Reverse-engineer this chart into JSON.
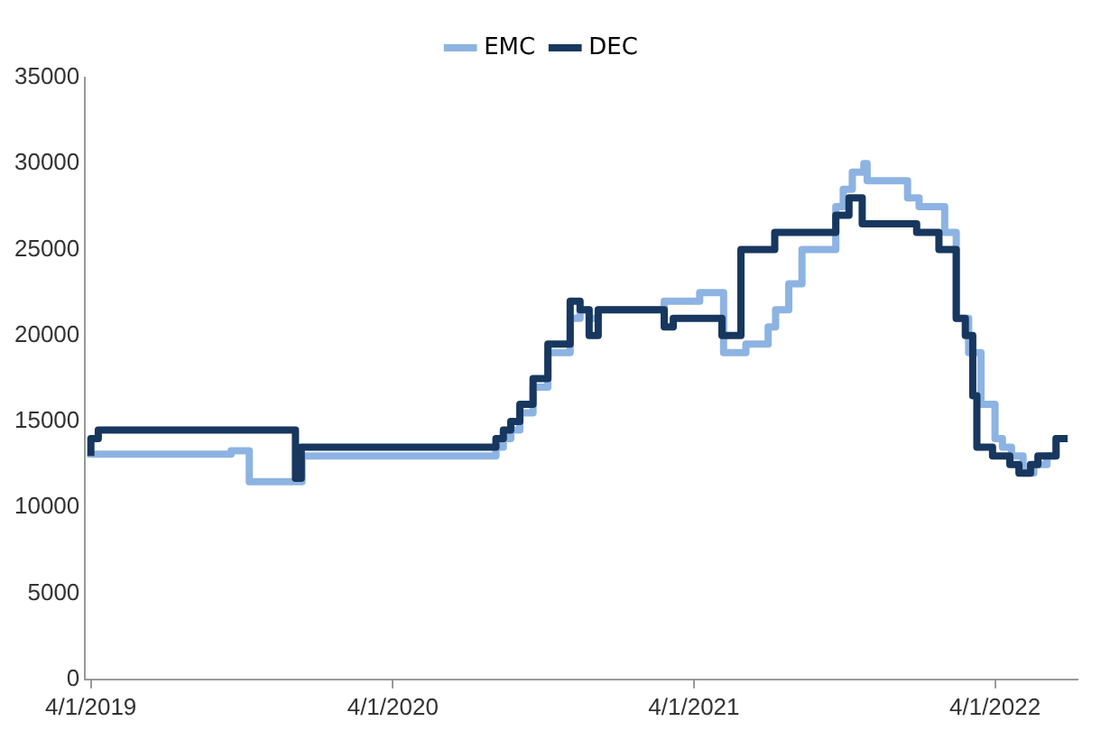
{
  "chart_data": {
    "type": "step",
    "legend": "top",
    "grid": false,
    "marker": "none",
    "xlim": [
      "2019-03-25",
      "2022-07-10"
    ],
    "xticks": [
      {
        "value": "2019-04-01",
        "label": "4/1/2019"
      },
      {
        "value": "2020-04-01",
        "label": "4/1/2020"
      },
      {
        "value": "2021-04-01",
        "label": "4/1/2021"
      },
      {
        "value": "2022-04-01",
        "label": "4/1/2022"
      }
    ],
    "ylim": [
      0,
      35000
    ],
    "yticks": [
      0,
      5000,
      10000,
      15000,
      20000,
      25000,
      30000,
      35000
    ],
    "series": [
      {
        "name": "EMC",
        "color": "#8db3e2",
        "x": [
          "2019-04-01",
          "2019-09-18",
          "2019-10-10",
          "2019-12-13",
          "2020-08-04",
          "2020-08-13",
          "2020-08-22",
          "2020-09-02",
          "2020-09-18",
          "2020-10-06",
          "2020-11-02",
          "2020-11-14",
          "2020-11-25",
          "2020-12-06",
          "2021-02-24",
          "2021-04-08",
          "2021-05-07",
          "2021-06-03",
          "2021-06-30",
          "2021-07-09",
          "2021-07-25",
          "2021-08-10",
          "2021-09-20",
          "2021-09-29",
          "2021-10-10",
          "2021-10-24",
          "2021-10-28",
          "2021-12-16",
          "2021-12-30",
          "2022-01-30",
          "2022-02-13",
          "2022-02-28",
          "2022-03-15",
          "2022-04-01",
          "2022-04-10",
          "2022-04-21",
          "2022-05-05",
          "2022-05-18",
          "2022-06-03",
          "2022-06-14",
          "2022-06-28"
        ],
        "values": [
          12900,
          13100,
          13300,
          11500,
          13000,
          13500,
          14000,
          14500,
          15500,
          17000,
          19000,
          21000,
          21500,
          21000,
          21500,
          22000,
          22500,
          19000,
          19500,
          20500,
          21500,
          23000,
          25000,
          27500,
          28500,
          29500,
          30000,
          29000,
          28000,
          27500,
          26000,
          21000,
          19000,
          16000,
          14000,
          13500,
          13000,
          12000,
          12500,
          13000,
          14000
        ]
      },
      {
        "name": "DEC",
        "color": "#17375e",
        "x": [
          "2019-04-01",
          "2019-04-10",
          "2019-12-05",
          "2019-12-12",
          "2020-08-04",
          "2020-08-13",
          "2020-08-22",
          "2020-09-02",
          "2020-09-18",
          "2020-10-06",
          "2020-11-02",
          "2020-11-14",
          "2020-11-25",
          "2020-12-06",
          "2021-02-24",
          "2021-03-07",
          "2021-05-05",
          "2021-05-28",
          "2021-07-08",
          "2021-09-20",
          "2021-10-06",
          "2021-10-22",
          "2021-12-27",
          "2022-01-23",
          "2022-02-13",
          "2022-02-24",
          "2022-03-05",
          "2022-03-10",
          "2022-03-29",
          "2022-04-19",
          "2022-04-30",
          "2022-05-14",
          "2022-05-23",
          "2022-06-14",
          "2022-06-28"
        ],
        "values": [
          13000,
          14000,
          14500,
          11700,
          13500,
          14000,
          14500,
          15000,
          16000,
          17500,
          19500,
          22000,
          21500,
          20000,
          21500,
          20500,
          21000,
          20000,
          25000,
          26000,
          27000,
          28000,
          26500,
          26000,
          25000,
          21000,
          20000,
          16500,
          13500,
          13000,
          12500,
          12000,
          12500,
          13000,
          14000
        ]
      }
    ]
  }
}
